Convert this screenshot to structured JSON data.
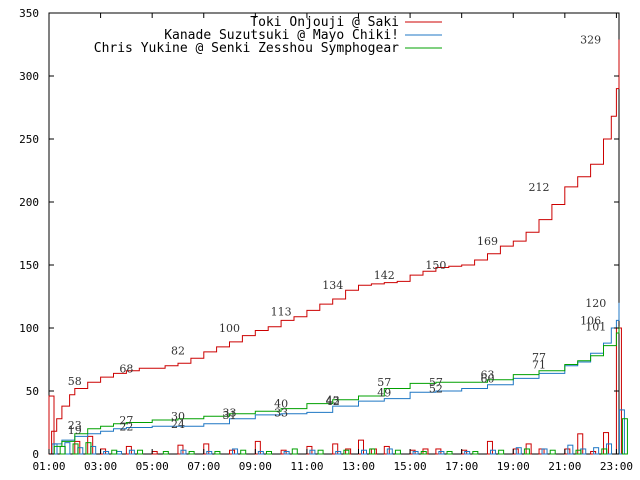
{
  "chart_data": {
    "type": "line",
    "xlim": [
      1,
      23.1
    ],
    "ylim": [
      0,
      350
    ],
    "y_ticks": [
      0,
      50,
      100,
      150,
      200,
      250,
      300,
      350
    ],
    "x_ticks": [
      {
        "x": 1,
        "label": "01:00"
      },
      {
        "x": 3,
        "label": "03:00"
      },
      {
        "x": 5,
        "label": "05:00"
      },
      {
        "x": 7,
        "label": "07:00"
      },
      {
        "x": 9,
        "label": "09:00"
      },
      {
        "x": 11,
        "label": "11:00"
      },
      {
        "x": 13,
        "label": "13:00"
      },
      {
        "x": 15,
        "label": "15:00"
      },
      {
        "x": 17,
        "label": "17:00"
      },
      {
        "x": 19,
        "label": "19:00"
      },
      {
        "x": 21,
        "label": "21:00"
      },
      {
        "x": 23,
        "label": "23:00"
      }
    ],
    "legend_position": "top-right",
    "grid": false,
    "series": [
      {
        "name": "Toki Onjouji @ Saki",
        "color": "#cc0000",
        "cumulative": [
          [
            1,
            0
          ],
          [
            1.1,
            18
          ],
          [
            1.3,
            28
          ],
          [
            1.5,
            38
          ],
          [
            1.8,
            47
          ],
          [
            2,
            52
          ],
          [
            2.5,
            57
          ],
          [
            3,
            61
          ],
          [
            3.5,
            64
          ],
          [
            4,
            66
          ],
          [
            4.5,
            68
          ],
          [
            5,
            68
          ],
          [
            5.5,
            70
          ],
          [
            6,
            72
          ],
          [
            6.5,
            76
          ],
          [
            7,
            81
          ],
          [
            7.5,
            85
          ],
          [
            8,
            89
          ],
          [
            8.5,
            94
          ],
          [
            9,
            98
          ],
          [
            9.5,
            101
          ],
          [
            10,
            106
          ],
          [
            10.5,
            109
          ],
          [
            11,
            114
          ],
          [
            11.5,
            119
          ],
          [
            12,
            123
          ],
          [
            12.5,
            130
          ],
          [
            13,
            134
          ],
          [
            13.5,
            135
          ],
          [
            14,
            136
          ],
          [
            14.5,
            137
          ],
          [
            15,
            142
          ],
          [
            15.5,
            145
          ],
          [
            16,
            148
          ],
          [
            16.5,
            149
          ],
          [
            17,
            150
          ],
          [
            17.5,
            154
          ],
          [
            18,
            159
          ],
          [
            18.5,
            165
          ],
          [
            19,
            169
          ],
          [
            19.5,
            176
          ],
          [
            20,
            186
          ],
          [
            20.5,
            198
          ],
          [
            21,
            212
          ],
          [
            21.5,
            220
          ],
          [
            22,
            230
          ],
          [
            22.5,
            250
          ],
          [
            22.8,
            268
          ],
          [
            23,
            290
          ],
          [
            23.1,
            329
          ]
        ],
        "point_labels": [
          [
            2,
            58
          ],
          [
            4,
            68
          ],
          [
            6,
            82
          ],
          [
            8,
            100
          ],
          [
            10,
            113
          ],
          [
            12,
            134
          ],
          [
            14,
            142
          ],
          [
            16,
            150
          ],
          [
            18,
            169
          ],
          [
            20,
            212
          ],
          [
            22,
            329
          ]
        ],
        "hourly_bars": [
          [
            1,
            46
          ],
          [
            2,
            10
          ],
          [
            2.5,
            14
          ],
          [
            3,
            4
          ],
          [
            4,
            6
          ],
          [
            5,
            2
          ],
          [
            6,
            7
          ],
          [
            7,
            8
          ],
          [
            8,
            3
          ],
          [
            9,
            10
          ],
          [
            10,
            3
          ],
          [
            11,
            6
          ],
          [
            12,
            8
          ],
          [
            12.5,
            4
          ],
          [
            13,
            11
          ],
          [
            13.5,
            4
          ],
          [
            14,
            6
          ],
          [
            15,
            3
          ],
          [
            15.5,
            4
          ],
          [
            16,
            4
          ],
          [
            17,
            3
          ],
          [
            18,
            10
          ],
          [
            19,
            4
          ],
          [
            19.5,
            8
          ],
          [
            20,
            4
          ],
          [
            21,
            4
          ],
          [
            21.5,
            16
          ],
          [
            22,
            2
          ],
          [
            22.5,
            17
          ],
          [
            23,
            100
          ]
        ]
      },
      {
        "name": "Kanade Suzutsuki @ Mayo Chiki!",
        "color": "#1f77c4",
        "cumulative": [
          [
            1,
            0
          ],
          [
            1.2,
            8
          ],
          [
            1.5,
            11
          ],
          [
            2,
            14
          ],
          [
            2.5,
            16
          ],
          [
            3,
            18
          ],
          [
            3.5,
            20
          ],
          [
            4,
            21
          ],
          [
            5,
            22
          ],
          [
            6,
            22
          ],
          [
            7,
            24
          ],
          [
            8,
            28
          ],
          [
            9,
            31
          ],
          [
            10,
            32
          ],
          [
            11,
            33
          ],
          [
            12,
            38
          ],
          [
            13,
            42
          ],
          [
            14,
            44
          ],
          [
            15,
            49
          ],
          [
            16,
            50
          ],
          [
            17,
            52
          ],
          [
            18,
            55
          ],
          [
            19,
            60
          ],
          [
            20,
            64
          ],
          [
            21,
            70
          ],
          [
            21.5,
            73
          ],
          [
            22,
            80
          ],
          [
            22.5,
            88
          ],
          [
            22.8,
            100
          ],
          [
            23,
            106
          ],
          [
            23.1,
            120
          ]
        ],
        "point_labels": [
          [
            2,
            19
          ],
          [
            4,
            22
          ],
          [
            6,
            24
          ],
          [
            8,
            31
          ],
          [
            10,
            33
          ],
          [
            12,
            42
          ],
          [
            14,
            49
          ],
          [
            16,
            52
          ],
          [
            18,
            60
          ],
          [
            20,
            77
          ],
          [
            22,
            106
          ],
          [
            22.2,
            120
          ]
        ],
        "hourly_bars": [
          [
            1,
            8
          ],
          [
            1.5,
            9
          ],
          [
            2,
            5
          ],
          [
            2.5,
            6
          ],
          [
            3,
            2
          ],
          [
            3.5,
            2
          ],
          [
            4,
            3
          ],
          [
            6,
            3
          ],
          [
            7,
            2
          ],
          [
            8,
            4
          ],
          [
            9,
            2
          ],
          [
            10,
            2
          ],
          [
            11,
            3
          ],
          [
            12,
            2
          ],
          [
            13,
            3
          ],
          [
            14,
            4
          ],
          [
            15,
            2
          ],
          [
            16,
            2
          ],
          [
            17,
            2
          ],
          [
            18,
            3
          ],
          [
            19,
            5
          ],
          [
            20,
            4
          ],
          [
            21,
            7
          ],
          [
            21.5,
            4
          ],
          [
            22,
            5
          ],
          [
            22.5,
            8
          ],
          [
            23,
            35
          ]
        ]
      },
      {
        "name": "Chris Yukine @ Senki Zesshou Symphogear",
        "color": "#00a000",
        "cumulative": [
          [
            1,
            0
          ],
          [
            1.2,
            6
          ],
          [
            1.5,
            10
          ],
          [
            2,
            16
          ],
          [
            2.5,
            20
          ],
          [
            3,
            22
          ],
          [
            3.5,
            24
          ],
          [
            4,
            25
          ],
          [
            5,
            27
          ],
          [
            6,
            28
          ],
          [
            7,
            30
          ],
          [
            8,
            32
          ],
          [
            9,
            34
          ],
          [
            10,
            36
          ],
          [
            11,
            40
          ],
          [
            12,
            43
          ],
          [
            13,
            46
          ],
          [
            14,
            52
          ],
          [
            15,
            56
          ],
          [
            16,
            57
          ],
          [
            17,
            57
          ],
          [
            18,
            59
          ],
          [
            19,
            63
          ],
          [
            20,
            66
          ],
          [
            21,
            71
          ],
          [
            21.5,
            74
          ],
          [
            22,
            78
          ],
          [
            22.5,
            86
          ],
          [
            23,
            96
          ],
          [
            23.1,
            101
          ]
        ],
        "point_labels": [
          [
            2,
            23
          ],
          [
            4,
            27
          ],
          [
            6,
            30
          ],
          [
            8,
            33
          ],
          [
            10,
            40
          ],
          [
            12,
            43
          ],
          [
            14,
            57
          ],
          [
            16,
            57
          ],
          [
            18,
            63
          ],
          [
            20,
            71
          ],
          [
            22.2,
            101
          ]
        ],
        "hourly_bars": [
          [
            1.2,
            6
          ],
          [
            1.7,
            8
          ],
          [
            2.2,
            9
          ],
          [
            3.2,
            3
          ],
          [
            4.2,
            3
          ],
          [
            5.2,
            2
          ],
          [
            6.2,
            2
          ],
          [
            7.2,
            2
          ],
          [
            8.2,
            3
          ],
          [
            9.2,
            2
          ],
          [
            10.2,
            4
          ],
          [
            11.2,
            3
          ],
          [
            12.2,
            3
          ],
          [
            13.2,
            4
          ],
          [
            14.2,
            3
          ],
          [
            15.2,
            2
          ],
          [
            16.2,
            2
          ],
          [
            17.2,
            2
          ],
          [
            18.2,
            3
          ],
          [
            19.2,
            4
          ],
          [
            20.2,
            3
          ],
          [
            21.2,
            3
          ],
          [
            22.2,
            4
          ],
          [
            23,
            28
          ]
        ]
      }
    ]
  }
}
